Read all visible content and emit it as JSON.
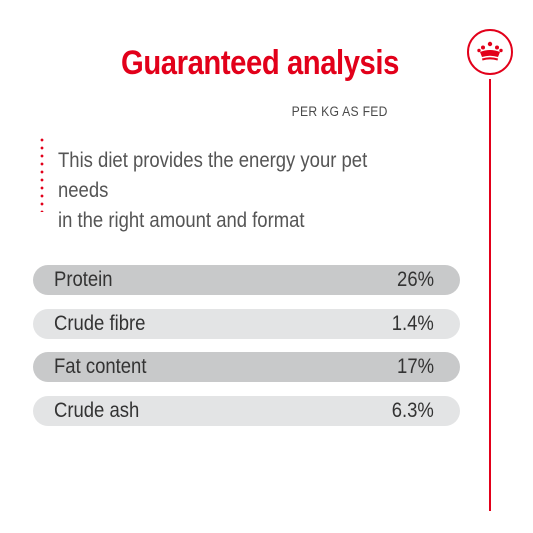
{
  "header": {
    "title": "Guaranteed analysis",
    "subtitle": "PER KG AS FED"
  },
  "description": {
    "line1": "This diet provides the energy your pet needs",
    "line2": "in the right amount and format"
  },
  "analysis": {
    "rows": [
      {
        "label": "Protein",
        "value": "26%"
      },
      {
        "label": "Crude fibre",
        "value": "1.4%"
      },
      {
        "label": "Fat content",
        "value": "17%"
      },
      {
        "label": "Crude ash",
        "value": "6.3%"
      }
    ]
  },
  "brand": {
    "icon": "crown-icon",
    "accent_color": "#e2001a",
    "row_colors": [
      "#c8c9ca",
      "#e3e4e5"
    ]
  }
}
